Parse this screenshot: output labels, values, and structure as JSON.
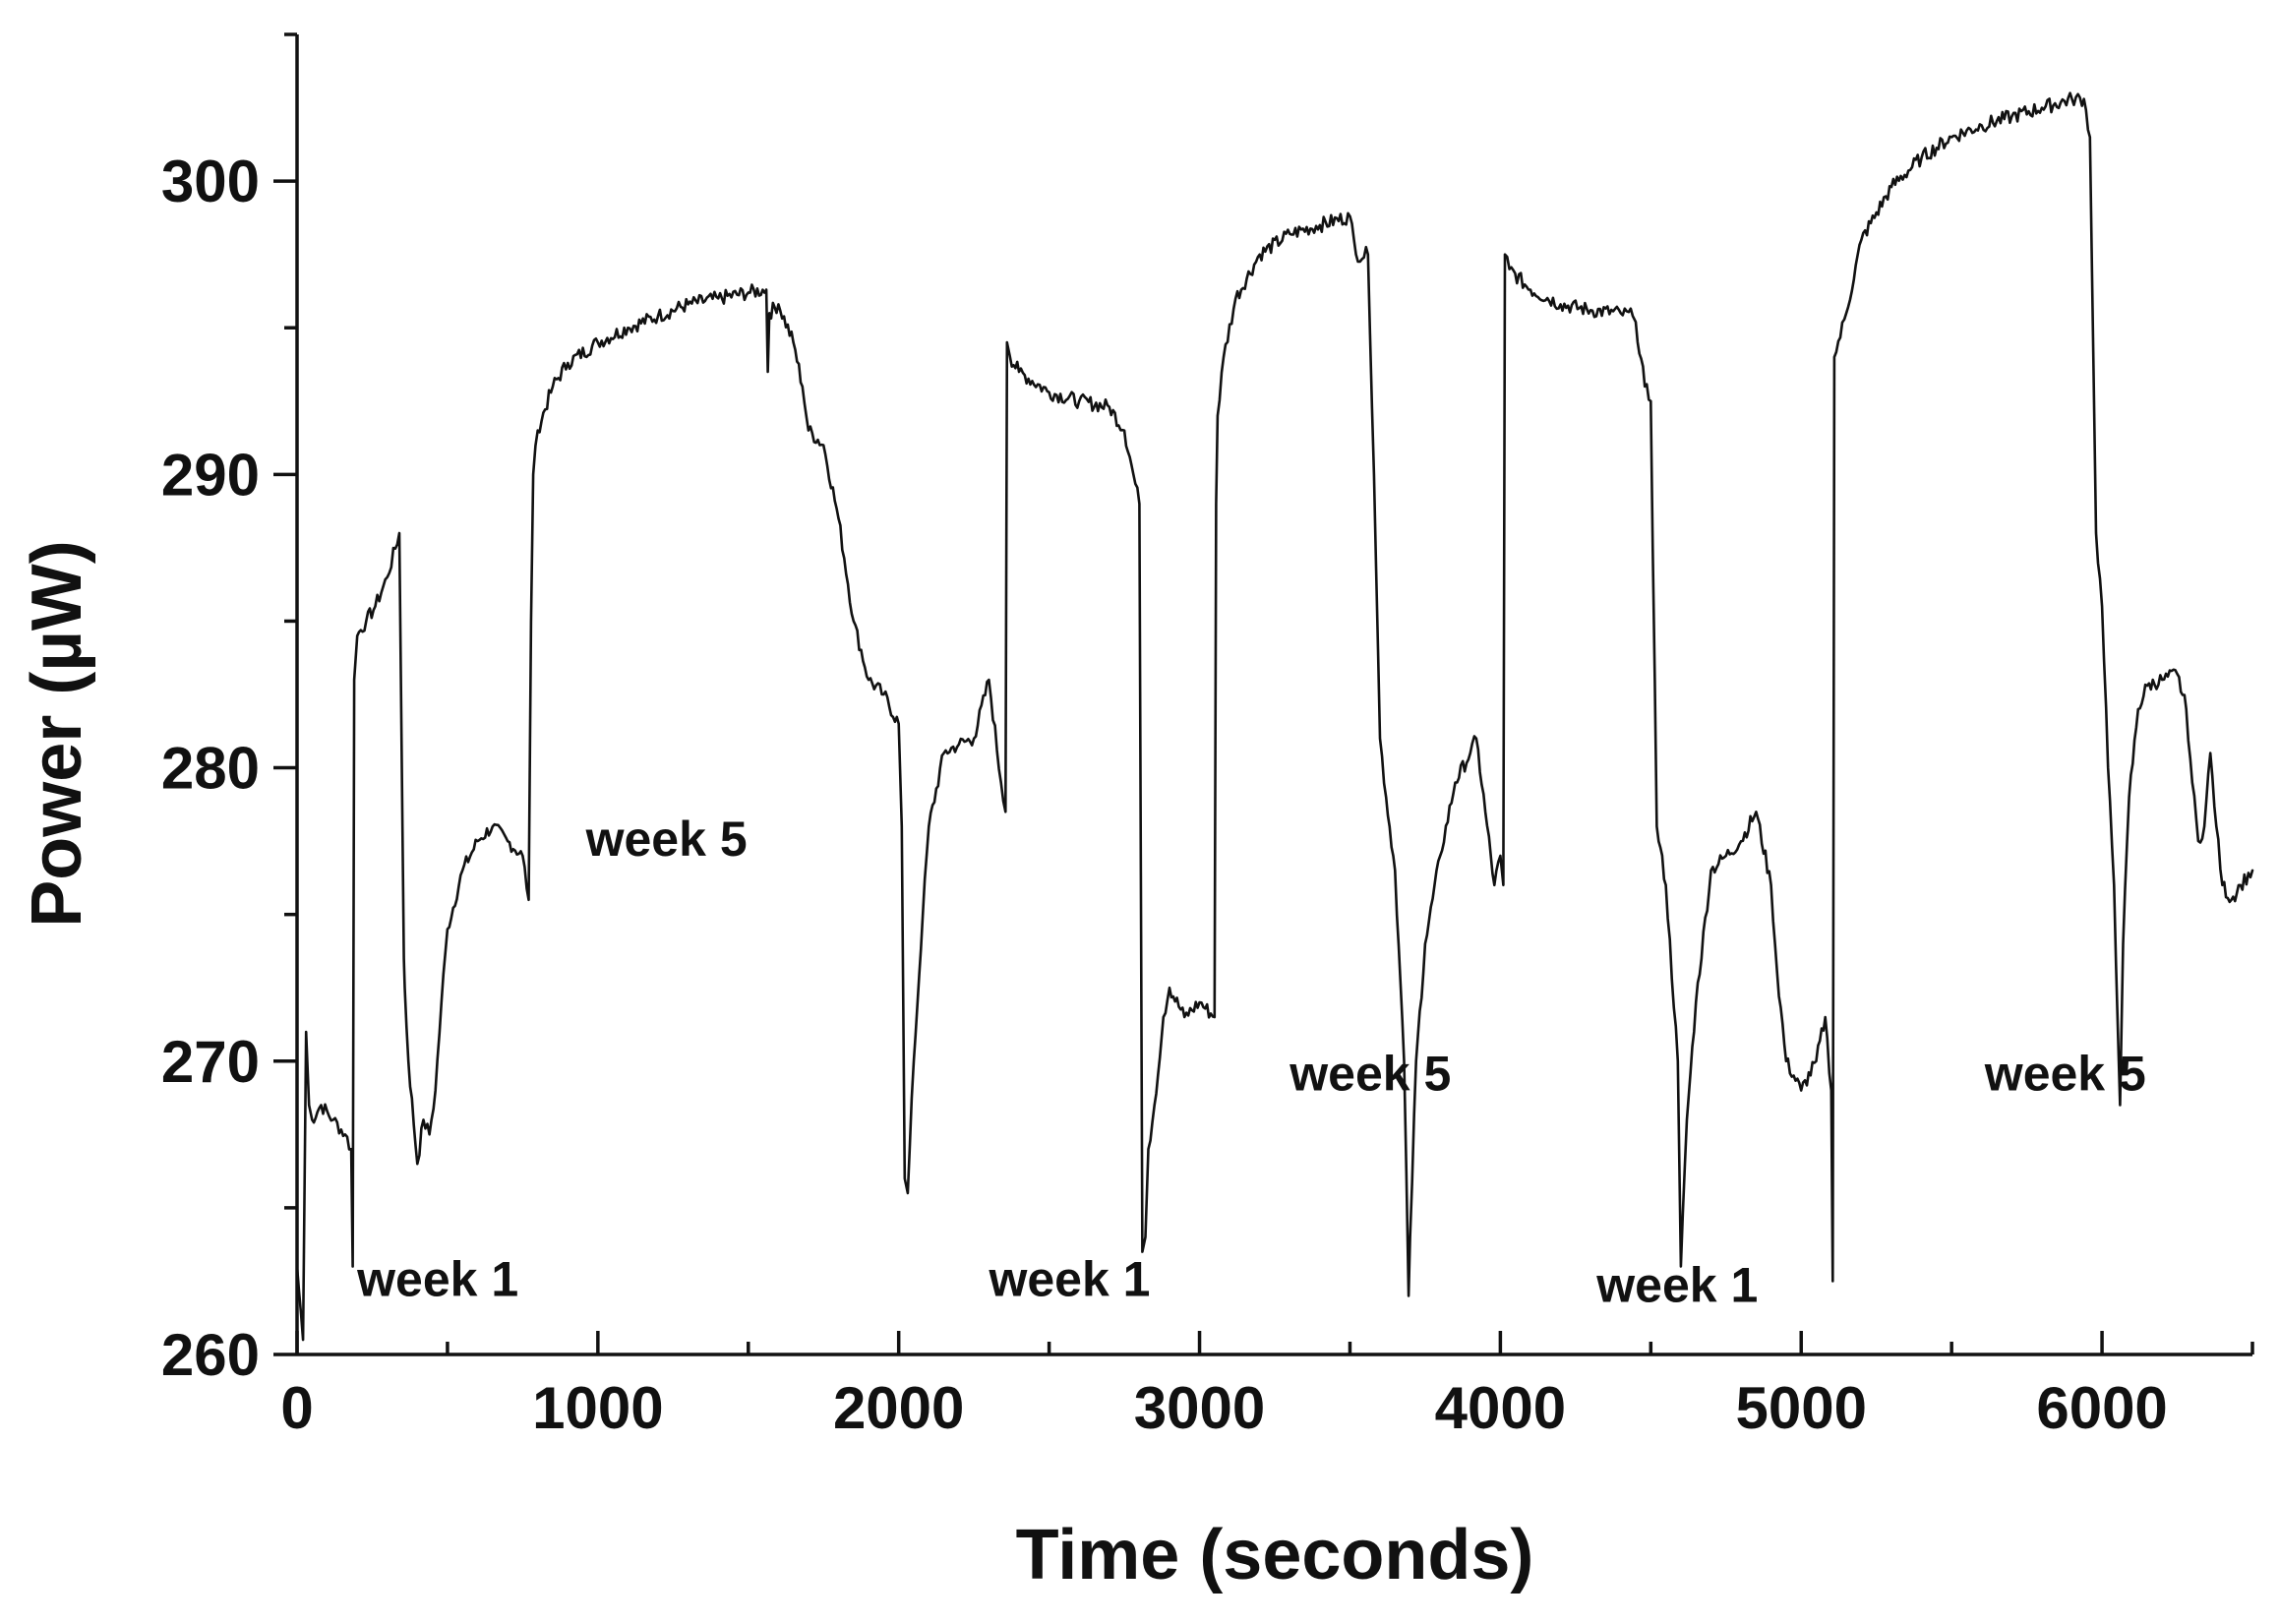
{
  "chart_data": {
    "type": "line",
    "title": "",
    "xlabel": "Time (seconds)",
    "ylabel": "Power (µW)",
    "xlim": [
      0,
      6500
    ],
    "ylim": [
      260,
      305
    ],
    "xticks": [
      0,
      1000,
      2000,
      3000,
      4000,
      5000,
      6000
    ],
    "xtick_labels": [
      "0",
      "1000",
      "2000",
      "3000",
      "4000",
      "5000",
      "6000"
    ],
    "xminor": [
      500,
      1500,
      2500,
      3500,
      4500,
      5500,
      6500
    ],
    "yticks": [
      260,
      270,
      280,
      290,
      300
    ],
    "ytick_labels": [
      "260",
      "270",
      "280",
      "290",
      "300"
    ],
    "yminor": [
      265,
      275,
      285,
      295,
      305
    ],
    "grid": false,
    "legend": "none",
    "series": [
      {
        "name": "power",
        "color": "#111111",
        "x": [
          0,
          20,
          30,
          40,
          50,
          80,
          120,
          160,
          180,
          185,
          190,
          200,
          230,
          260,
          300,
          340,
          355,
          358,
          370,
          400,
          420,
          440,
          460,
          480,
          500,
          550,
          600,
          650,
          700,
          750,
          770,
          778,
          785,
          800,
          850,
          900,
          1000,
          1100,
          1200,
          1300,
          1400,
          1500,
          1560,
          1565,
          1570,
          1600,
          1650,
          1680,
          1700,
          1750,
          1800,
          1850,
          1900,
          1950,
          2000,
          2010,
          2020,
          2030,
          2050,
          2080,
          2100,
          2150,
          2200,
          2250,
          2300,
          2340,
          2355,
          2360,
          2370,
          2400,
          2500,
          2600,
          2700,
          2750,
          2780,
          2800,
          2810,
          2820,
          2830,
          2850,
          2880,
          2900,
          2950,
          3000,
          3050,
          3055,
          3060,
          3080,
          3120,
          3200,
          3300,
          3400,
          3500,
          3520,
          3560,
          3580,
          3600,
          3620,
          3650,
          3680,
          3695,
          3700,
          3720,
          3750,
          3800,
          3850,
          3900,
          3920,
          3950,
          3980,
          4000,
          4010,
          4015,
          4030,
          4100,
          4200,
          4300,
          4400,
          4440,
          4450,
          4480,
          4500,
          4520,
          4550,
          4590,
          4600,
          4620,
          4650,
          4700,
          4750,
          4800,
          4850,
          4900,
          4920,
          4950,
          5000,
          5050,
          5080,
          5100,
          5105,
          5110,
          5150,
          5200,
          5300,
          5400,
          5500,
          5600,
          5700,
          5800,
          5900,
          5940,
          5960,
          5980,
          6000,
          6020,
          6040,
          6060,
          6070,
          6090,
          6120,
          6150,
          6200,
          6250,
          6280,
          6300,
          6320,
          6340,
          6360,
          6380,
          6400,
          6430,
          6460,
          6500
        ],
        "values": [
          263,
          260.5,
          271,
          268.5,
          268,
          268.5,
          268,
          267.5,
          267,
          263,
          283,
          284.5,
          285,
          285.5,
          286.5,
          288,
          273.5,
          272.5,
          270,
          266.5,
          268,
          267.5,
          269,
          272,
          274.5,
          276.5,
          277.5,
          278,
          277.5,
          277,
          275.5,
          285,
          290,
          291.5,
          293,
          293.8,
          294.5,
          295,
          295.4,
          295.8,
          296,
          296.2,
          296.3,
          293.5,
          295.5,
          295.8,
          294.5,
          293,
          291.5,
          291,
          288.5,
          285,
          283,
          282.5,
          281.5,
          278,
          266,
          265.5,
          270,
          275,
          278,
          280.5,
          280.8,
          281,
          283,
          279.5,
          278.5,
          294.5,
          294,
          293.5,
          292.8,
          292.5,
          292.3,
          291.5,
          290,
          289,
          263.5,
          264,
          267,
          268.5,
          271.5,
          272.5,
          271.5,
          272,
          271.5,
          289,
          292,
          294,
          296,
          297.5,
          298.2,
          298.5,
          298.8,
          297.5,
          297.5,
          290,
          281,
          279,
          276.5,
          270,
          262,
          264,
          270,
          274,
          277,
          279.5,
          280.5,
          281,
          278.5,
          276,
          277,
          276,
          297.5,
          297,
          296.3,
          295.8,
          295.6,
          295.5,
          295.4,
          295.2,
          293,
          292.5,
          278,
          276,
          270,
          263,
          268,
          272,
          276.5,
          277,
          277.5,
          278.5,
          276,
          273,
          270,
          269,
          270,
          271.5,
          269,
          262.5,
          294,
          295.5,
          298,
          299.8,
          300.8,
          301.5,
          301.9,
          302.2,
          302.5,
          302.8,
          302.8,
          301.5,
          288,
          285.5,
          280,
          276,
          268.5,
          274,
          279,
          282,
          282.8,
          283,
          283.2,
          282,
          279.5,
          277.5,
          278,
          280.5,
          278,
          276,
          275.5,
          276,
          276.5
        ]
      }
    ],
    "annotations": [
      {
        "text": "week 1",
        "x": 200,
        "y": 262
      },
      {
        "text": "week 5",
        "x": 960,
        "y": 277
      },
      {
        "text": "week 1",
        "x": 2300,
        "y": 262
      },
      {
        "text": "week 5",
        "x": 3300,
        "y": 269
      },
      {
        "text": "week 1",
        "x": 4320,
        "y": 261.8
      },
      {
        "text": "week 5",
        "x": 5610,
        "y": 269
      }
    ]
  }
}
